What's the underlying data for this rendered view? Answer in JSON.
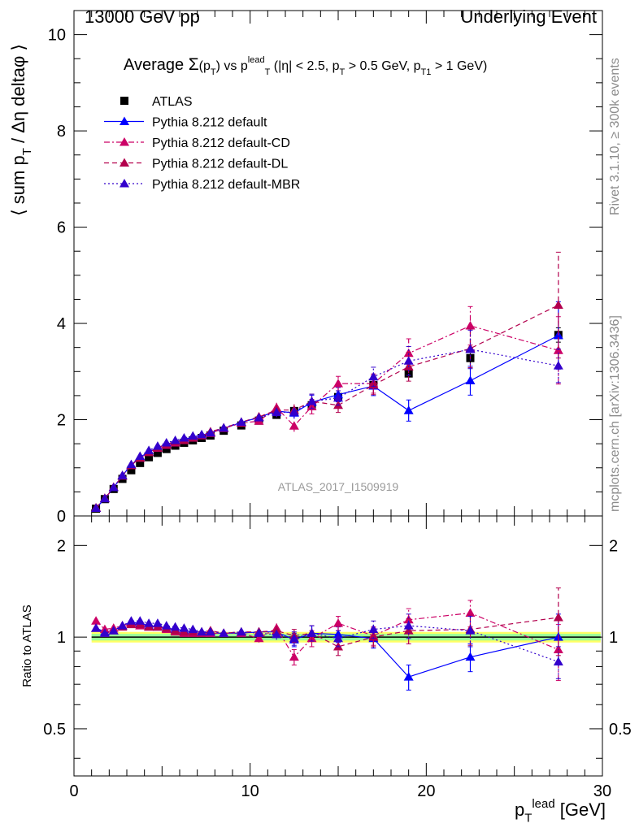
{
  "header": {
    "left": "13000 GeV pp",
    "right": "Underlying Event"
  },
  "side_text": {
    "rivet": "Rivet 3.1.10, ≥ 300k events",
    "mcplots": "mcplots.cern.ch [arXiv:1306.3436]"
  },
  "chart_data": [
    {
      "type": "scatter",
      "panel": "main",
      "title": "Average Σ(p_T) vs p_T^lead (|η| < 2.5, p_T > 0.5 GeV, p_T1 > 1 GeV)",
      "ylabel": "⟨ sum p_T / Δη deltaφ ⟩",
      "xlim": [
        0,
        30
      ],
      "ylim": [
        0,
        10.5
      ],
      "yticks": [
        0,
        2,
        4,
        6,
        8,
        10
      ],
      "xticks": [
        0,
        10,
        20,
        30
      ],
      "grid": false,
      "legend_position": "top-left",
      "watermark": "ATLAS_2017_I1509919",
      "x": [
        1.25,
        1.75,
        2.25,
        2.75,
        3.25,
        3.75,
        4.25,
        4.75,
        5.25,
        5.75,
        6.25,
        6.75,
        7.25,
        7.75,
        8.5,
        9.5,
        10.5,
        11.5,
        12.5,
        13.5,
        15,
        17,
        19,
        22.5,
        27.5
      ],
      "series": [
        {
          "name": "ATLAS",
          "color": "#000000",
          "marker": "square",
          "line": "none",
          "values": [
            0.15,
            0.35,
            0.56,
            0.77,
            0.95,
            1.1,
            1.22,
            1.31,
            1.39,
            1.46,
            1.52,
            1.57,
            1.62,
            1.67,
            1.77,
            1.88,
            1.98,
            2.1,
            2.18,
            2.3,
            2.47,
            2.72,
            2.96,
            3.28,
            3.76
          ],
          "errors": [
            0.01,
            0.01,
            0.02,
            0.02,
            0.02,
            0.02,
            0.03,
            0.03,
            0.03,
            0.03,
            0.03,
            0.03,
            0.03,
            0.04,
            0.04,
            0.04,
            0.05,
            0.06,
            0.06,
            0.07,
            0.07,
            0.08,
            0.09,
            0.1,
            0.15
          ]
        },
        {
          "name": "Pythia 8.212 default",
          "color": "#0000ff",
          "marker": "triangle",
          "line": "solid",
          "values": [
            0.16,
            0.36,
            0.59,
            0.84,
            1.06,
            1.22,
            1.33,
            1.42,
            1.49,
            1.54,
            1.59,
            1.64,
            1.68,
            1.72,
            1.82,
            1.94,
            2.05,
            2.18,
            2.14,
            2.36,
            2.52,
            2.7,
            2.19,
            2.81,
            3.75
          ],
          "errors": [
            0.01,
            0.01,
            0.01,
            0.02,
            0.02,
            0.02,
            0.02,
            0.03,
            0.03,
            0.03,
            0.03,
            0.04,
            0.04,
            0.04,
            0.04,
            0.05,
            0.07,
            0.1,
            0.12,
            0.15,
            0.15,
            0.2,
            0.22,
            0.3,
            0.7
          ]
        },
        {
          "name": "Pythia 8.212 default-CD",
          "color": "#cc0066",
          "marker": "triangle",
          "line": "dashdot",
          "values": [
            0.17,
            0.37,
            0.6,
            0.84,
            1.05,
            1.2,
            1.32,
            1.41,
            1.47,
            1.52,
            1.57,
            1.62,
            1.67,
            1.72,
            1.82,
            1.93,
            1.97,
            2.25,
            1.87,
            2.27,
            2.75,
            2.75,
            3.38,
            3.95,
            3.44
          ],
          "errors": [
            0.01,
            0.01,
            0.01,
            0.02,
            0.02,
            0.02,
            0.02,
            0.03,
            0.03,
            0.03,
            0.03,
            0.04,
            0.04,
            0.04,
            0.04,
            0.05,
            0.07,
            0.1,
            0.12,
            0.15,
            0.15,
            0.2,
            0.3,
            0.4,
            0.7
          ]
        },
        {
          "name": "Pythia 8.212 default-DL",
          "color": "#b3004d",
          "marker": "triangle",
          "line": "dashed",
          "values": [
            0.16,
            0.36,
            0.59,
            0.83,
            1.05,
            1.21,
            1.32,
            1.42,
            1.49,
            1.54,
            1.58,
            1.63,
            1.68,
            1.75,
            1.83,
            1.95,
            2.06,
            2.2,
            2.2,
            2.38,
            2.3,
            2.72,
            3.1,
            3.48,
            4.38
          ],
          "errors": [
            0.01,
            0.01,
            0.01,
            0.02,
            0.02,
            0.02,
            0.02,
            0.03,
            0.03,
            0.03,
            0.03,
            0.04,
            0.04,
            0.04,
            0.04,
            0.05,
            0.07,
            0.1,
            0.12,
            0.15,
            0.15,
            0.2,
            0.3,
            0.4,
            1.1
          ]
        },
        {
          "name": "Pythia 8.212 default-MBR",
          "color": "#3300cc",
          "marker": "triangle",
          "line": "dotted",
          "values": [
            0.16,
            0.36,
            0.59,
            0.84,
            1.07,
            1.24,
            1.36,
            1.45,
            1.52,
            1.57,
            1.62,
            1.66,
            1.69,
            1.73,
            1.83,
            1.95,
            2.04,
            2.15,
            2.16,
            2.38,
            2.45,
            2.89,
            3.22,
            3.46,
            3.12
          ],
          "errors": [
            0.01,
            0.01,
            0.01,
            0.02,
            0.02,
            0.02,
            0.02,
            0.03,
            0.03,
            0.03,
            0.03,
            0.04,
            0.04,
            0.04,
            0.04,
            0.05,
            0.07,
            0.1,
            0.12,
            0.15,
            0.15,
            0.2,
            0.3,
            0.4,
            0.35
          ]
        }
      ]
    },
    {
      "type": "scatter",
      "panel": "ratio",
      "ylabel": "Ratio to ATLAS",
      "xlabel": "p_T^lead [GeV]",
      "xlim": [
        0,
        30
      ],
      "ylim": [
        0.35,
        2.5
      ],
      "yscale": "log",
      "yticks": [
        0.5,
        1,
        2
      ],
      "xticks": [
        0,
        10,
        20,
        30
      ],
      "reference_line": 1,
      "band_colors": [
        "#ffff66",
        "#99ff99"
      ],
      "band_halfwidths": [
        0.04,
        0.025
      ],
      "x": [
        1.25,
        1.75,
        2.25,
        2.75,
        3.25,
        3.75,
        4.25,
        4.75,
        5.25,
        5.75,
        6.25,
        6.75,
        7.25,
        7.75,
        8.5,
        9.5,
        10.5,
        11.5,
        12.5,
        13.5,
        15,
        17,
        19,
        22.5,
        27.5
      ],
      "series": [
        {
          "name": "Pythia 8.212 default",
          "color": "#0000ff",
          "line": "solid",
          "values": [
            1.07,
            1.04,
            1.05,
            1.09,
            1.12,
            1.11,
            1.09,
            1.08,
            1.07,
            1.06,
            1.05,
            1.04,
            1.04,
            1.03,
            1.03,
            1.03,
            1.04,
            1.04,
            0.98,
            1.03,
            1.02,
            0.99,
            0.74,
            0.86,
            1.0
          ],
          "errors": [
            0.02,
            0.02,
            0.02,
            0.02,
            0.02,
            0.02,
            0.02,
            0.02,
            0.02,
            0.02,
            0.02,
            0.02,
            0.02,
            0.02,
            0.02,
            0.02,
            0.03,
            0.04,
            0.05,
            0.06,
            0.06,
            0.07,
            0.07,
            0.09,
            0.19
          ]
        },
        {
          "name": "Pythia 8.212 default-CD",
          "color": "#cc0066",
          "line": "dashdot",
          "values": [
            1.13,
            1.06,
            1.07,
            1.09,
            1.11,
            1.09,
            1.08,
            1.08,
            1.06,
            1.04,
            1.03,
            1.03,
            1.03,
            1.03,
            1.03,
            1.03,
            0.99,
            1.07,
            0.86,
            0.99,
            1.11,
            1.01,
            1.14,
            1.2,
            0.91
          ],
          "errors": [
            0.02,
            0.02,
            0.02,
            0.02,
            0.02,
            0.02,
            0.02,
            0.02,
            0.02,
            0.02,
            0.02,
            0.02,
            0.02,
            0.02,
            0.02,
            0.02,
            0.03,
            0.04,
            0.05,
            0.06,
            0.06,
            0.07,
            0.1,
            0.12,
            0.19
          ]
        },
        {
          "name": "Pythia 8.212 default-DL",
          "color": "#b3004d",
          "line": "dashed",
          "values": [
            1.07,
            1.03,
            1.05,
            1.08,
            1.1,
            1.1,
            1.08,
            1.08,
            1.07,
            1.05,
            1.04,
            1.04,
            1.04,
            1.05,
            1.03,
            1.04,
            1.04,
            1.05,
            1.01,
            1.03,
            0.93,
            1.0,
            1.05,
            1.06,
            1.16
          ],
          "errors": [
            0.02,
            0.02,
            0.02,
            0.02,
            0.02,
            0.02,
            0.02,
            0.02,
            0.02,
            0.02,
            0.02,
            0.02,
            0.02,
            0.02,
            0.02,
            0.02,
            0.03,
            0.04,
            0.05,
            0.06,
            0.06,
            0.07,
            0.1,
            0.12,
            0.29
          ]
        },
        {
          "name": "Pythia 8.212 default-MBR",
          "color": "#3300cc",
          "line": "dotted",
          "values": [
            1.07,
            1.03,
            1.05,
            1.09,
            1.13,
            1.13,
            1.11,
            1.11,
            1.09,
            1.08,
            1.07,
            1.06,
            1.04,
            1.04,
            1.03,
            1.04,
            1.03,
            1.02,
            0.99,
            1.03,
            0.99,
            1.06,
            1.09,
            1.05,
            0.83
          ],
          "errors": [
            0.02,
            0.02,
            0.02,
            0.02,
            0.02,
            0.02,
            0.02,
            0.02,
            0.02,
            0.02,
            0.02,
            0.02,
            0.02,
            0.02,
            0.02,
            0.02,
            0.03,
            0.04,
            0.05,
            0.06,
            0.06,
            0.07,
            0.1,
            0.12,
            0.1
          ]
        }
      ]
    }
  ]
}
